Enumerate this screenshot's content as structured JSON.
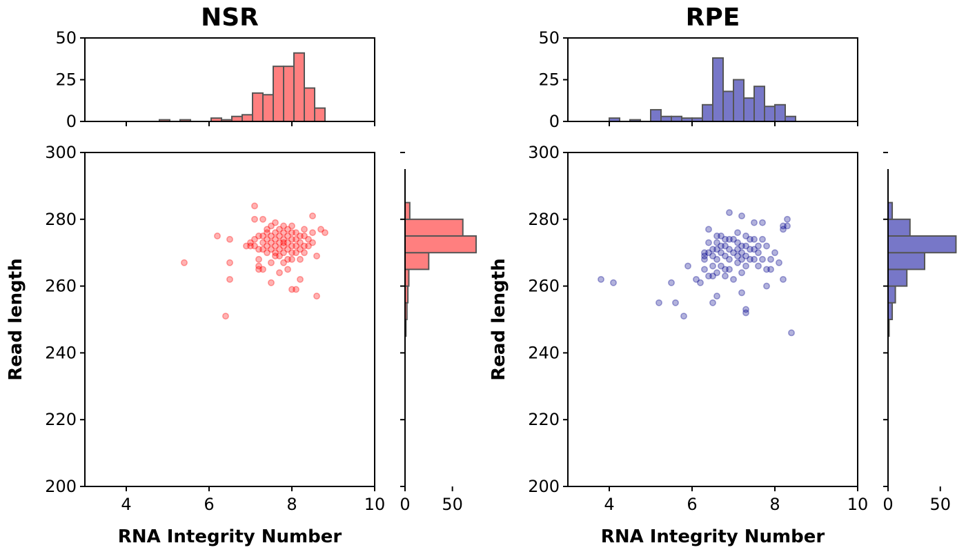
{
  "chart_data": [
    {
      "id": "NSR",
      "type": "scatter",
      "title": "NSR",
      "xlabel": "RNA Integrity Number",
      "ylabel": "Read length",
      "xlim": [
        3,
        10
      ],
      "ylim": [
        200,
        300
      ],
      "xticks": [
        "4",
        "6",
        "8",
        "10"
      ],
      "yticks": [
        "200",
        "220",
        "240",
        "260",
        "280",
        "300"
      ],
      "color": "#ff0000",
      "hist_color": "#ff7f7f",
      "edge_color": "#555555",
      "points": [
        [
          5.4,
          267
        ],
        [
          6.2,
          275
        ],
        [
          6.4,
          251
        ],
        [
          6.5,
          274
        ],
        [
          6.5,
          267
        ],
        [
          6.5,
          262
        ],
        [
          6.9,
          272
        ],
        [
          7.0,
          273
        ],
        [
          7.0,
          272
        ],
        [
          7.1,
          284
        ],
        [
          7.1,
          280
        ],
        [
          7.1,
          274
        ],
        [
          7.1,
          272
        ],
        [
          7.2,
          275
        ],
        [
          7.2,
          271
        ],
        [
          7.2,
          268
        ],
        [
          7.2,
          266
        ],
        [
          7.2,
          265
        ],
        [
          7.3,
          280
        ],
        [
          7.3,
          275
        ],
        [
          7.3,
          273
        ],
        [
          7.3,
          271
        ],
        [
          7.3,
          265
        ],
        [
          7.4,
          277
        ],
        [
          7.4,
          276
        ],
        [
          7.4,
          274
        ],
        [
          7.4,
          272
        ],
        [
          7.4,
          270
        ],
        [
          7.5,
          278
        ],
        [
          7.5,
          275
        ],
        [
          7.5,
          273
        ],
        [
          7.5,
          271
        ],
        [
          7.5,
          267
        ],
        [
          7.5,
          261
        ],
        [
          7.6,
          279
        ],
        [
          7.6,
          276
        ],
        [
          7.6,
          274
        ],
        [
          7.6,
          272
        ],
        [
          7.6,
          270
        ],
        [
          7.6,
          269
        ],
        [
          7.7,
          277
        ],
        [
          7.7,
          275
        ],
        [
          7.7,
          273
        ],
        [
          7.7,
          271
        ],
        [
          7.7,
          269
        ],
        [
          7.7,
          264
        ],
        [
          7.8,
          278
        ],
        [
          7.8,
          276
        ],
        [
          7.8,
          274
        ],
        [
          7.8,
          273
        ],
        [
          7.8,
          272
        ],
        [
          7.8,
          270
        ],
        [
          7.8,
          267
        ],
        [
          7.9,
          277
        ],
        [
          7.9,
          275
        ],
        [
          7.9,
          273
        ],
        [
          7.9,
          271
        ],
        [
          7.9,
          268
        ],
        [
          7.9,
          265
        ],
        [
          8.0,
          278
        ],
        [
          8.0,
          276
        ],
        [
          8.0,
          274
        ],
        [
          8.0,
          272
        ],
        [
          8.0,
          270
        ],
        [
          8.0,
          268
        ],
        [
          8.0,
          259
        ],
        [
          8.1,
          276
        ],
        [
          8.1,
          274
        ],
        [
          8.1,
          272
        ],
        [
          8.1,
          270
        ],
        [
          8.1,
          259
        ],
        [
          8.2,
          275
        ],
        [
          8.2,
          273
        ],
        [
          8.2,
          271
        ],
        [
          8.2,
          268
        ],
        [
          8.2,
          262
        ],
        [
          8.3,
          277
        ],
        [
          8.3,
          275
        ],
        [
          8.3,
          272
        ],
        [
          8.3,
          270
        ],
        [
          8.4,
          274
        ],
        [
          8.4,
          272
        ],
        [
          8.5,
          281
        ],
        [
          8.5,
          276
        ],
        [
          8.5,
          273
        ],
        [
          8.6,
          269
        ],
        [
          8.6,
          257
        ],
        [
          8.7,
          277
        ],
        [
          8.8,
          276
        ]
      ],
      "x_histogram": {
        "ylim": [
          0,
          50
        ],
        "yticks": [
          "0",
          "25",
          "50"
        ],
        "bin_edges": [
          4.8,
          5.05,
          5.3,
          5.55,
          5.8,
          6.05,
          6.3,
          6.55,
          6.8,
          7.05,
          7.3,
          7.55,
          7.8,
          8.05,
          8.3,
          8.55,
          8.8
        ],
        "counts": [
          1,
          0,
          1,
          0,
          0,
          2,
          1,
          3,
          4,
          17,
          16,
          33,
          33,
          41,
          20,
          8
        ]
      },
      "y_histogram": {
        "xlim": [
          0,
          75
        ],
        "xticks": [
          "0",
          "50"
        ],
        "bin_edges": [
          245,
          250,
          255,
          260,
          265,
          270,
          275,
          280,
          285
        ],
        "counts": [
          1,
          2,
          3,
          4,
          25,
          75,
          61,
          5
        ]
      }
    },
    {
      "id": "RPE",
      "type": "scatter",
      "title": "RPE",
      "xlabel": "RNA Integrity Number",
      "ylabel": "Read length",
      "xlim": [
        3,
        10
      ],
      "ylim": [
        200,
        300
      ],
      "xticks": [
        "4",
        "6",
        "8",
        "10"
      ],
      "yticks": [
        "200",
        "220",
        "240",
        "260",
        "280",
        "300"
      ],
      "color": "#00008b",
      "hist_color": "#7777c8",
      "edge_color": "#555555",
      "points": [
        [
          3.8,
          262
        ],
        [
          4.1,
          261
        ],
        [
          5.2,
          255
        ],
        [
          5.5,
          261
        ],
        [
          5.6,
          255
        ],
        [
          5.8,
          251
        ],
        [
          5.9,
          266
        ],
        [
          6.1,
          262
        ],
        [
          6.2,
          261
        ],
        [
          6.3,
          270
        ],
        [
          6.3,
          269
        ],
        [
          6.3,
          268
        ],
        [
          6.3,
          265
        ],
        [
          6.4,
          277
        ],
        [
          6.4,
          273
        ],
        [
          6.4,
          270
        ],
        [
          6.4,
          263
        ],
        [
          6.5,
          271
        ],
        [
          6.5,
          269
        ],
        [
          6.5,
          266
        ],
        [
          6.5,
          263
        ],
        [
          6.5,
          255
        ],
        [
          6.6,
          275
        ],
        [
          6.6,
          273
        ],
        [
          6.6,
          271
        ],
        [
          6.6,
          268
        ],
        [
          6.6,
          264
        ],
        [
          6.6,
          257
        ],
        [
          6.7,
          275
        ],
        [
          6.7,
          272
        ],
        [
          6.7,
          270
        ],
        [
          6.7,
          266
        ],
        [
          6.8,
          274
        ],
        [
          6.8,
          272
        ],
        [
          6.8,
          269
        ],
        [
          6.8,
          265
        ],
        [
          6.8,
          263
        ],
        [
          6.9,
          282
        ],
        [
          6.9,
          274
        ],
        [
          6.9,
          271
        ],
        [
          6.9,
          268
        ],
        [
          6.9,
          265
        ],
        [
          7.0,
          274
        ],
        [
          7.0,
          270
        ],
        [
          7.0,
          262
        ],
        [
          7.1,
          276
        ],
        [
          7.1,
          273
        ],
        [
          7.1,
          271
        ],
        [
          7.1,
          269
        ],
        [
          7.1,
          267
        ],
        [
          7.2,
          281
        ],
        [
          7.2,
          272
        ],
        [
          7.2,
          270
        ],
        [
          7.2,
          268
        ],
        [
          7.2,
          264
        ],
        [
          7.2,
          258
        ],
        [
          7.3,
          275
        ],
        [
          7.3,
          272
        ],
        [
          7.3,
          269
        ],
        [
          7.3,
          266
        ],
        [
          7.3,
          253
        ],
        [
          7.3,
          252
        ],
        [
          7.4,
          274
        ],
        [
          7.4,
          271
        ],
        [
          7.4,
          268
        ],
        [
          7.5,
          279
        ],
        [
          7.5,
          274
        ],
        [
          7.5,
          271
        ],
        [
          7.5,
          268
        ],
        [
          7.6,
          272
        ],
        [
          7.6,
          270
        ],
        [
          7.6,
          266
        ],
        [
          7.7,
          279
        ],
        [
          7.7,
          274
        ],
        [
          7.7,
          268
        ],
        [
          7.8,
          272
        ],
        [
          7.8,
          265
        ],
        [
          7.8,
          260
        ],
        [
          7.9,
          268
        ],
        [
          7.9,
          265
        ],
        [
          8.0,
          270
        ],
        [
          8.1,
          267
        ],
        [
          8.2,
          278
        ],
        [
          8.2,
          277
        ],
        [
          8.2,
          262
        ],
        [
          8.3,
          280
        ],
        [
          8.3,
          278
        ],
        [
          8.4,
          246
        ]
      ],
      "x_histogram": {
        "ylim": [
          0,
          50
        ],
        "yticks": [
          "0",
          "25",
          "50"
        ],
        "bin_edges": [
          4.0,
          4.25,
          4.5,
          4.75,
          5.0,
          5.25,
          5.5,
          5.75,
          6.0,
          6.25,
          6.5,
          6.75,
          7.0,
          7.25,
          7.5,
          7.75,
          8.0,
          8.25,
          8.5
        ],
        "counts": [
          2,
          0,
          1,
          0,
          7,
          3,
          3,
          2,
          2,
          10,
          38,
          18,
          25,
          14,
          21,
          9,
          10,
          3
        ]
      },
      "y_histogram": {
        "xlim": [
          0,
          68
        ],
        "xticks": [
          "0",
          "50"
        ],
        "bin_edges": [
          245,
          250,
          255,
          260,
          265,
          270,
          275,
          280,
          285
        ],
        "counts": [
          1,
          4,
          7,
          18,
          35,
          65,
          21,
          4
        ]
      }
    }
  ]
}
